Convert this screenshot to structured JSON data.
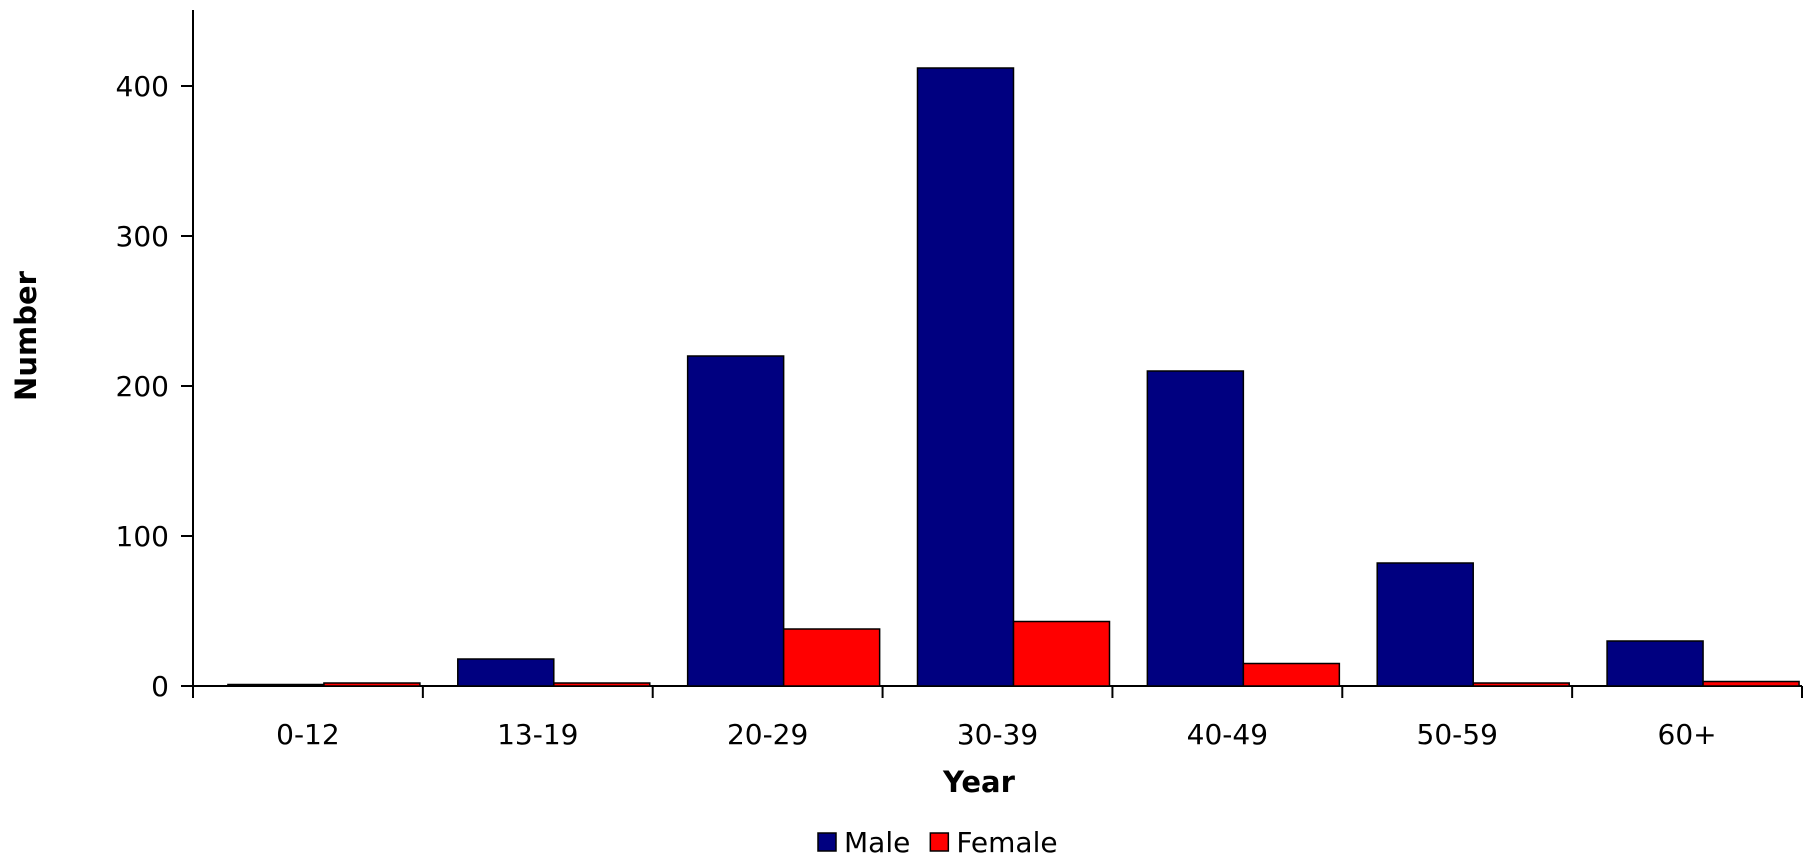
{
  "chart_data": {
    "type": "bar",
    "title": "",
    "xlabel": "Year",
    "ylabel": "Number",
    "categories": [
      "0-12",
      "13-19",
      "20-29",
      "30-39",
      "40-49",
      "50-59",
      "60+"
    ],
    "series": [
      {
        "name": "Male",
        "color": "#000080",
        "values": [
          1,
          18,
          220,
          412,
          210,
          82,
          30
        ]
      },
      {
        "name": "Female",
        "color": "#ff0000",
        "values": [
          2,
          2,
          38,
          43,
          15,
          2,
          3
        ]
      }
    ],
    "ylim": [
      0,
      450
    ],
    "yticks": [
      0,
      100,
      200,
      300,
      400
    ],
    "grid": false,
    "legend_position": "bottom"
  }
}
